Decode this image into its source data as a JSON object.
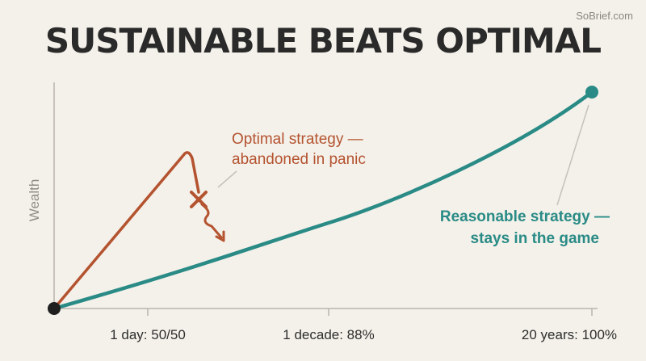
{
  "watermark": "SoBrief.com",
  "title": "SUSTAINABLE BEATS OPTIMAL",
  "colors": {
    "background": "#f4f1ea",
    "optimal": "#b4532f",
    "reasonable": "#2a8b86",
    "axis": "#b9b5ae",
    "origin": "#1f1f1f"
  },
  "chart_data": {
    "type": "line",
    "ylabel": "Wealth",
    "xlabel": "",
    "grid": false,
    "x_ticks": [
      "1 day: 50/50",
      "1 decade: 88%",
      "20 years: 100%"
    ],
    "series": [
      {
        "name": "Optimal strategy — abandoned in panic",
        "annotation_lines": [
          "Optimal strategy —",
          "abandoned in panic"
        ],
        "values": [
          0,
          0.72
        ],
        "outcome": "abandoned"
      },
      {
        "name": "Reasonable strategy — stays in the game",
        "annotation_lines": [
          "Reasonable strategy —",
          "stays in the game"
        ],
        "values": [
          0,
          0.26,
          1.0
        ],
        "outcome": "sustained"
      }
    ]
  }
}
